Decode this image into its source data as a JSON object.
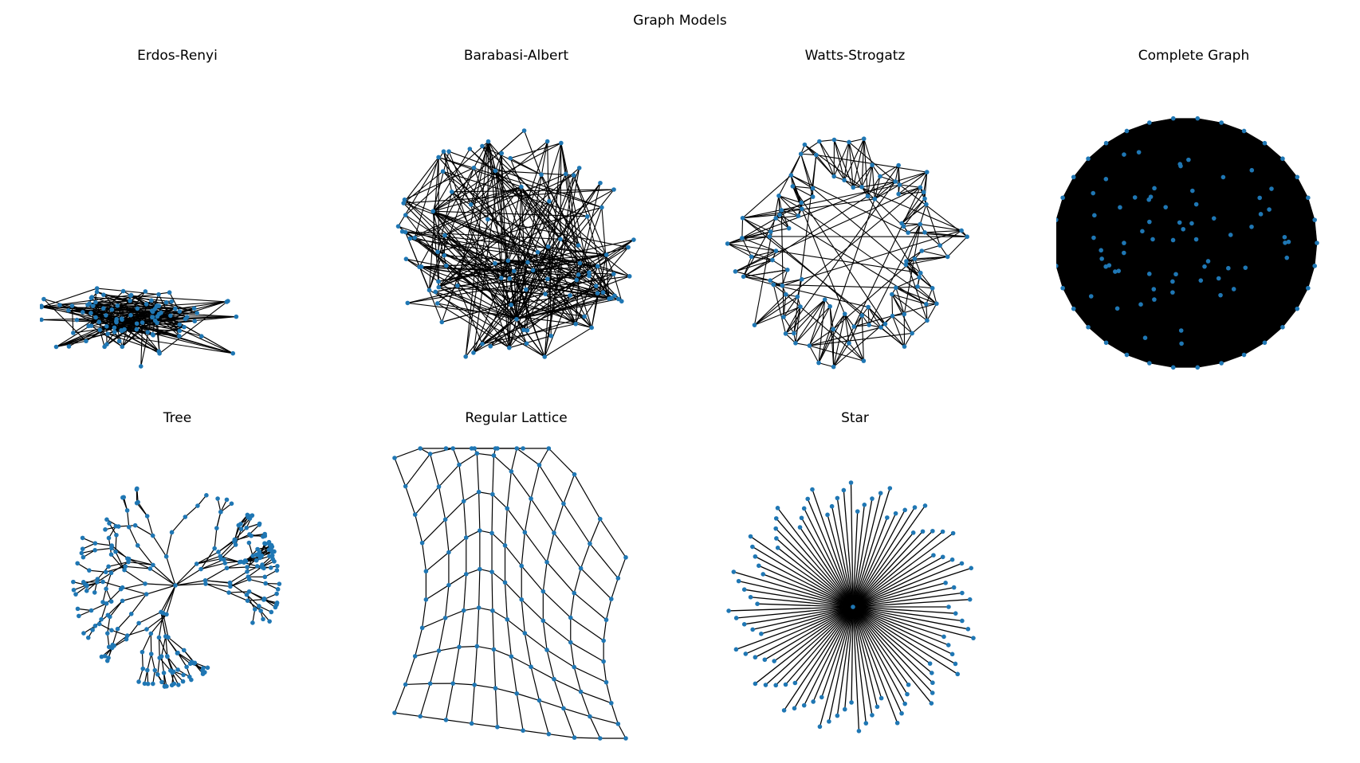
{
  "figure": {
    "title": "Graph Models"
  },
  "panels": [
    {
      "id": "erdos-renyi",
      "title": "Erdos-Renyi"
    },
    {
      "id": "barabasi-albert",
      "title": "Barabasi-Albert"
    },
    {
      "id": "watts-strogatz",
      "title": "Watts-Strogatz"
    },
    {
      "id": "complete-graph",
      "title": "Complete Graph"
    },
    {
      "id": "tree",
      "title": "Tree"
    },
    {
      "id": "regular-lattice",
      "title": "Regular Lattice"
    },
    {
      "id": "star",
      "title": "Star"
    }
  ],
  "colors": {
    "node": "#1f77b4",
    "edge": "#000000"
  }
}
